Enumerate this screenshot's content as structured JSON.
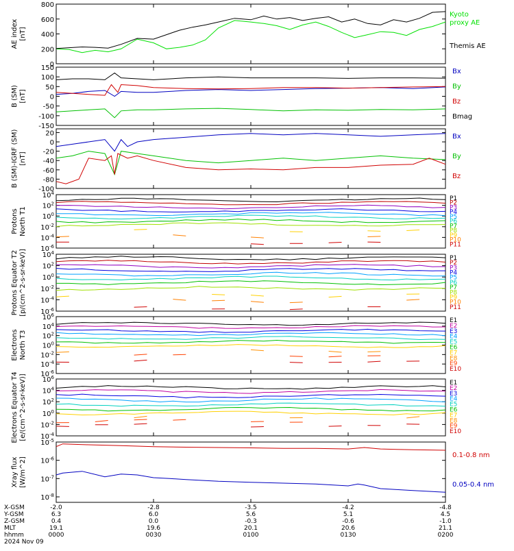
{
  "chart_data": [
    {
      "type": "line",
      "ylabel": "AE index [nT]",
      "yticks": [
        "800",
        "600",
        "400",
        "200",
        "0"
      ],
      "ylim": [
        0,
        800
      ],
      "xlim": [
        0,
        120
      ],
      "series": [
        {
          "name": "Kyoto proxy AE",
          "color": "#00e000",
          "x": [
            0,
            4,
            8,
            12,
            16,
            20,
            25,
            30,
            34,
            38,
            42,
            46,
            50,
            55,
            60,
            64,
            68,
            72,
            76,
            80,
            84,
            88,
            92,
            96,
            100,
            104,
            108,
            112,
            116,
            120
          ],
          "y": [
            200,
            190,
            150,
            180,
            160,
            200,
            330,
            280,
            200,
            220,
            250,
            320,
            480,
            580,
            560,
            540,
            510,
            460,
            520,
            560,
            500,
            420,
            350,
            390,
            430,
            420,
            380,
            460,
            500,
            560
          ]
        },
        {
          "name": "Themis AE",
          "color": "#000000",
          "x": [
            0,
            4,
            8,
            12,
            16,
            20,
            25,
            30,
            34,
            38,
            42,
            46,
            50,
            55,
            60,
            64,
            68,
            72,
            76,
            80,
            84,
            88,
            92,
            96,
            100,
            104,
            108,
            112,
            116,
            120
          ],
          "y": [
            205,
            215,
            225,
            220,
            210,
            260,
            340,
            330,
            390,
            450,
            490,
            520,
            560,
            610,
            590,
            640,
            600,
            620,
            580,
            610,
            630,
            560,
            600,
            540,
            520,
            590,
            560,
            610,
            690,
            700
          ]
        }
      ],
      "legend": [
        "Kyoto proxy AE",
        "Themis AE"
      ]
    },
    {
      "type": "line",
      "ylabel": "B (SM) [nT]",
      "yticks": [
        "150",
        "100",
        "50",
        "0",
        "-50",
        "-100",
        "-150"
      ],
      "ylim": [
        -150,
        150
      ],
      "xlim": [
        0,
        120
      ],
      "series": [
        {
          "name": "Bx",
          "color": "#0000c0",
          "x": [
            0,
            5,
            10,
            15,
            18,
            20,
            25,
            30,
            40,
            50,
            60,
            70,
            80,
            90,
            100,
            110,
            120
          ],
          "y": [
            10,
            15,
            25,
            30,
            0,
            25,
            20,
            20,
            30,
            35,
            30,
            35,
            40,
            42,
            45,
            40,
            48
          ]
        },
        {
          "name": "By",
          "color": "#00c000",
          "x": [
            0,
            5,
            10,
            15,
            18,
            20,
            25,
            30,
            40,
            50,
            60,
            70,
            80,
            90,
            100,
            110,
            120
          ],
          "y": [
            -80,
            -75,
            -70,
            -65,
            -110,
            -75,
            -70,
            -70,
            -65,
            -62,
            -68,
            -75,
            -70,
            -72,
            -68,
            -70,
            -65
          ]
        },
        {
          "name": "Bz",
          "color": "#d00000",
          "x": [
            0,
            5,
            10,
            15,
            17,
            19,
            20,
            25,
            30,
            40,
            50,
            60,
            70,
            80,
            90,
            100,
            110,
            120
          ],
          "y": [
            20,
            15,
            10,
            5,
            60,
            20,
            60,
            55,
            45,
            40,
            38,
            40,
            45,
            45,
            42,
            45,
            48,
            50
          ]
        },
        {
          "name": "Bmag",
          "color": "#000000",
          "x": [
            0,
            5,
            10,
            15,
            18,
            20,
            25,
            30,
            40,
            50,
            60,
            70,
            80,
            90,
            100,
            110,
            120
          ],
          "y": [
            85,
            90,
            90,
            85,
            120,
            95,
            90,
            85,
            95,
            100,
            95,
            95,
            95,
            92,
            95,
            95,
            93
          ]
        }
      ],
      "legend": [
        "Bx",
        "By",
        "Bz",
        "Bmag"
      ]
    },
    {
      "type": "line",
      "ylabel": "B (SM)-IGRF (SM) [nT]",
      "yticks": [
        "20",
        "0",
        "-20",
        "-40",
        "-60",
        "-80",
        "-100"
      ],
      "ylim": [
        -100,
        28
      ],
      "xlim": [
        0,
        120
      ],
      "series": [
        {
          "name": "Bx",
          "color": "#0000c0",
          "x": [
            0,
            5,
            10,
            15,
            18,
            20,
            22,
            25,
            30,
            40,
            50,
            60,
            70,
            80,
            90,
            100,
            110,
            120
          ],
          "y": [
            -10,
            -5,
            0,
            5,
            -20,
            5,
            -10,
            0,
            5,
            10,
            15,
            18,
            15,
            18,
            15,
            12,
            15,
            18
          ]
        },
        {
          "name": "By",
          "color": "#00c000",
          "x": [
            0,
            5,
            10,
            15,
            18,
            20,
            25,
            30,
            40,
            50,
            60,
            70,
            80,
            90,
            100,
            110,
            120
          ],
          "y": [
            -35,
            -30,
            -20,
            -25,
            -70,
            -20,
            -25,
            -30,
            -40,
            -45,
            -40,
            -35,
            -40,
            -35,
            -30,
            -35,
            -38
          ]
        },
        {
          "name": "Bz",
          "color": "#d00000",
          "x": [
            0,
            3,
            7,
            10,
            15,
            17,
            18,
            19,
            22,
            25,
            30,
            40,
            50,
            60,
            70,
            80,
            90,
            100,
            110,
            115,
            120
          ],
          "y": [
            -85,
            -90,
            -80,
            -35,
            -40,
            -30,
            -70,
            -25,
            -35,
            -30,
            -40,
            -55,
            -60,
            -58,
            -60,
            -55,
            -55,
            -50,
            -48,
            -35,
            -48
          ]
        }
      ],
      "legend": [
        "Bx",
        "By",
        "Bz"
      ]
    },
    {
      "type": "line",
      "ylabel": "Protons North T1",
      "yscale": "log",
      "yticks": [
        "10^4",
        "10^2",
        "10^0",
        "10^-2",
        "10^-4",
        "10^-6"
      ],
      "ylim_exp": [
        -6,
        4
      ],
      "xlim": [
        0,
        120
      ],
      "series_base_exp": [
        3.0,
        2.4,
        1.7,
        1.0,
        0.4,
        -0.2,
        -0.9,
        -1.6,
        -2.7,
        -3.8,
        -5.0
      ],
      "legend": [
        "P1",
        "P2",
        "P3",
        "P4",
        "P5",
        "P6",
        "P7",
        "P8",
        "P9",
        "P10",
        "P11"
      ]
    },
    {
      "type": "line",
      "ylabel": "Protons Equator T2 [p/(cm^2-s-sr-keV)]",
      "yscale": "log",
      "yticks": [
        "10^4",
        "10^2",
        "10^0",
        "10^-2",
        "10^-4",
        "10^-6"
      ],
      "ylim_exp": [
        -6,
        4
      ],
      "xlim": [
        0,
        120
      ],
      "series_base_exp": [
        3.3,
        2.6,
        1.9,
        1.2,
        0.5,
        -0.2,
        -1.0,
        -2.0,
        -3.2,
        -4.2,
        -5.5
      ],
      "legend": [
        "P1",
        "P2",
        "P3",
        "P4",
        "P5",
        "P6",
        "P7",
        "P8",
        "P9",
        "P10",
        "P11"
      ]
    },
    {
      "type": "line",
      "ylabel": "Electrons North T3",
      "yscale": "log",
      "yticks": [
        "10^6",
        "10^4",
        "10^2",
        "10^0",
        "10^-2",
        "10^-4",
        "10^-6"
      ],
      "ylim_exp": [
        -6,
        6
      ],
      "xlim": [
        0,
        120
      ],
      "series_base_exp": [
        4.5,
        3.8,
        3.0,
        2.3,
        1.5,
        0.7,
        -0.2,
        -1.2,
        -2.2,
        -3.5
      ],
      "legend": [
        "E1",
        "E2",
        "E3",
        "E4",
        "E5",
        "E6",
        "E7",
        "E8",
        "E9",
        "E10"
      ]
    },
    {
      "type": "line",
      "ylabel": "Electrons Equator T4 [e/(cm^2-s-sr-keV)]",
      "yscale": "log",
      "yticks": [
        "10^6",
        "10^4",
        "10^2",
        "10^0",
        "10^-2",
        "10^-4"
      ],
      "ylim_exp": [
        -4,
        6
      ],
      "xlim": [
        0,
        120
      ],
      "series_base_exp": [
        4.5,
        3.8,
        3.0,
        2.3,
        1.5,
        0.7,
        0.0,
        -0.7,
        -1.4,
        -2.2
      ],
      "legend": [
        "E1",
        "E2",
        "E3",
        "E4",
        "E5",
        "E6",
        "E7",
        "E8",
        "E9",
        "E10"
      ]
    },
    {
      "type": "line",
      "ylabel": "Xray flux [W/m^2]",
      "yscale": "log",
      "yticks": [
        "10^-5",
        "10^-6",
        "10^-7",
        "10^-8"
      ],
      "ylim_exp": [
        -8.3,
        -5
      ],
      "xlim": [
        0,
        120
      ],
      "series": [
        {
          "name": "0.1-0.8 nm",
          "color": "#d00000",
          "x": [
            0,
            2,
            10,
            20,
            30,
            40,
            50,
            60,
            70,
            80,
            90,
            95,
            100,
            105,
            110,
            120
          ],
          "y_exp": [
            -5.25,
            -5.1,
            -5.15,
            -5.2,
            -5.25,
            -5.28,
            -5.3,
            -5.32,
            -5.35,
            -5.35,
            -5.38,
            -5.3,
            -5.38,
            -5.4,
            -5.42,
            -5.45
          ]
        },
        {
          "name": "0.05-0.4 nm",
          "color": "#0000c0",
          "x": [
            0,
            2,
            8,
            15,
            20,
            25,
            30,
            35,
            40,
            50,
            60,
            70,
            80,
            90,
            93,
            95,
            100,
            110,
            120
          ],
          "y_exp": [
            -6.8,
            -6.7,
            -6.6,
            -6.9,
            -6.75,
            -6.8,
            -6.95,
            -7.0,
            -7.05,
            -7.15,
            -7.2,
            -7.25,
            -7.3,
            -7.4,
            -7.3,
            -7.35,
            -7.55,
            -7.65,
            -7.75
          ]
        }
      ],
      "legend": [
        "0.1-0.8 nm",
        "0.05-0.4 nm"
      ]
    }
  ],
  "x_axis": {
    "rows": [
      {
        "label": "X-GSM",
        "values": [
          "-2.0",
          "-2.8",
          "-3.5",
          "-4.2",
          "-4.8"
        ]
      },
      {
        "label": "Y-GSM",
        "values": [
          "6.3",
          "6.0",
          "5.6",
          "5.1",
          "4.5"
        ]
      },
      {
        "label": "Z-GSM",
        "values": [
          "0.4",
          "0.0",
          "-0.3",
          "-0.6",
          "-1.0"
        ]
      },
      {
        "label": "MLT",
        "values": [
          "19.1",
          "19.6",
          "20.1",
          "20.6",
          "21.1"
        ]
      },
      {
        "label": "hhmm",
        "values": [
          "0000",
          "0030",
          "0100",
          "0130",
          "0200"
        ]
      }
    ],
    "date": "2024 Nov 09"
  },
  "colors": {
    "P": [
      "#000000",
      "#c00000",
      "#9000c0",
      "#0000e0",
      "#00a0ff",
      "#00d0c0",
      "#00c000",
      "#a0e000",
      "#ffd000",
      "#ff8000",
      "#d00000"
    ],
    "E": [
      "#000000",
      "#c000a0",
      "#0000e0",
      "#00a0ff",
      "#00d0c0",
      "#00c000",
      "#ffd000",
      "#ff9000",
      "#ff4000",
      "#d00000"
    ]
  }
}
